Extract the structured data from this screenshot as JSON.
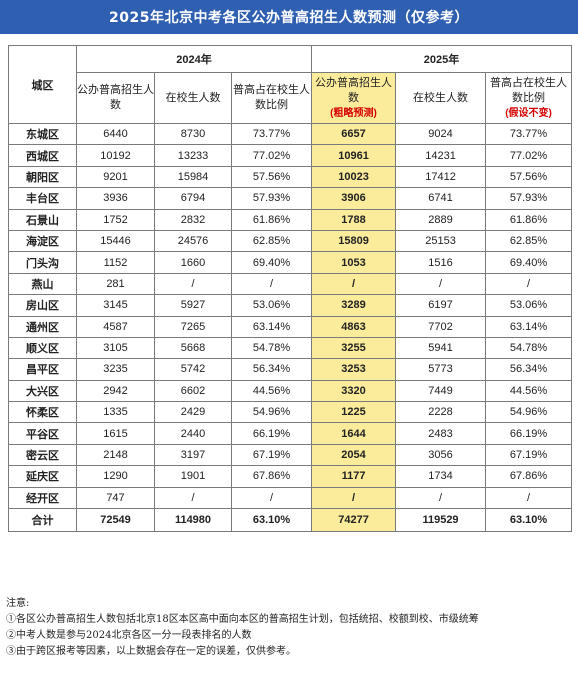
{
  "title": "2025年北京中考各区公办普高招生人数预测（仅参考）",
  "header": {
    "district_col": "城区",
    "year_2024": "2024年",
    "year_2025": "2025年",
    "cols_2024": [
      "公办普高招生人数",
      "在校生人数",
      "普高占在校生人数比例"
    ],
    "cols_2025": [
      "公办普高招生人数",
      "在校生人数",
      "普高占在校生人数比例"
    ],
    "note_pred": "(粗略预测)",
    "note_ratio": "(假设不变)"
  },
  "rows": [
    {
      "district": "东城区",
      "a": "6440",
      "b": "8730",
      "c": "73.77%",
      "d": "6657",
      "e": "9024",
      "f": "73.77%"
    },
    {
      "district": "西城区",
      "a": "10192",
      "b": "13233",
      "c": "77.02%",
      "d": "10961",
      "e": "14231",
      "f": "77.02%"
    },
    {
      "district": "朝阳区",
      "a": "9201",
      "b": "15984",
      "c": "57.56%",
      "d": "10023",
      "e": "17412",
      "f": "57.56%"
    },
    {
      "district": "丰台区",
      "a": "3936",
      "b": "6794",
      "c": "57.93%",
      "d": "3906",
      "e": "6741",
      "f": "57.93%"
    },
    {
      "district": "石景山",
      "a": "1752",
      "b": "2832",
      "c": "61.86%",
      "d": "1788",
      "e": "2889",
      "f": "61.86%"
    },
    {
      "district": "海淀区",
      "a": "15446",
      "b": "24576",
      "c": "62.85%",
      "d": "15809",
      "e": "25153",
      "f": "62.85%"
    },
    {
      "district": "门头沟",
      "a": "1152",
      "b": "1660",
      "c": "69.40%",
      "d": "1053",
      "e": "1516",
      "f": "69.40%"
    },
    {
      "district": "燕山",
      "a": "281",
      "b": "/",
      "c": "/",
      "d": "/",
      "e": "/",
      "f": "/"
    },
    {
      "district": "房山区",
      "a": "3145",
      "b": "5927",
      "c": "53.06%",
      "d": "3289",
      "e": "6197",
      "f": "53.06%"
    },
    {
      "district": "通州区",
      "a": "4587",
      "b": "7265",
      "c": "63.14%",
      "d": "4863",
      "e": "7702",
      "f": "63.14%"
    },
    {
      "district": "顺义区",
      "a": "3105",
      "b": "5668",
      "c": "54.78%",
      "d": "3255",
      "e": "5941",
      "f": "54.78%"
    },
    {
      "district": "昌平区",
      "a": "3235",
      "b": "5742",
      "c": "56.34%",
      "d": "3253",
      "e": "5773",
      "f": "56.34%"
    },
    {
      "district": "大兴区",
      "a": "2942",
      "b": "6602",
      "c": "44.56%",
      "d": "3320",
      "e": "7449",
      "f": "44.56%"
    },
    {
      "district": "怀柔区",
      "a": "1335",
      "b": "2429",
      "c": "54.96%",
      "d": "1225",
      "e": "2228",
      "f": "54.96%"
    },
    {
      "district": "平谷区",
      "a": "1615",
      "b": "2440",
      "c": "66.19%",
      "d": "1644",
      "e": "2483",
      "f": "66.19%"
    },
    {
      "district": "密云区",
      "a": "2148",
      "b": "3197",
      "c": "67.19%",
      "d": "2054",
      "e": "3056",
      "f": "67.19%"
    },
    {
      "district": "延庆区",
      "a": "1290",
      "b": "1901",
      "c": "67.86%",
      "d": "1177",
      "e": "1734",
      "f": "67.86%"
    },
    {
      "district": "经开区",
      "a": "747",
      "b": "/",
      "c": "/",
      "d": "/",
      "e": "/",
      "f": "/"
    }
  ],
  "total": {
    "district": "合计",
    "a": "72549",
    "b": "114980",
    "c": "63.10%",
    "d": "74277",
    "e": "119529",
    "f": "63.10%"
  },
  "notes": {
    "heading": "注意:",
    "items": [
      "①各区公办普高招生人数包括北京18区本区高中面向本区的普高招生计划，包括统招、校额到校、市级统筹",
      "②中考人数是参与2024北京各区一分一段表排名的人数",
      "③由于跨区报考等因素，以上数据会存在一定的误差，仅供参考。"
    ]
  }
}
